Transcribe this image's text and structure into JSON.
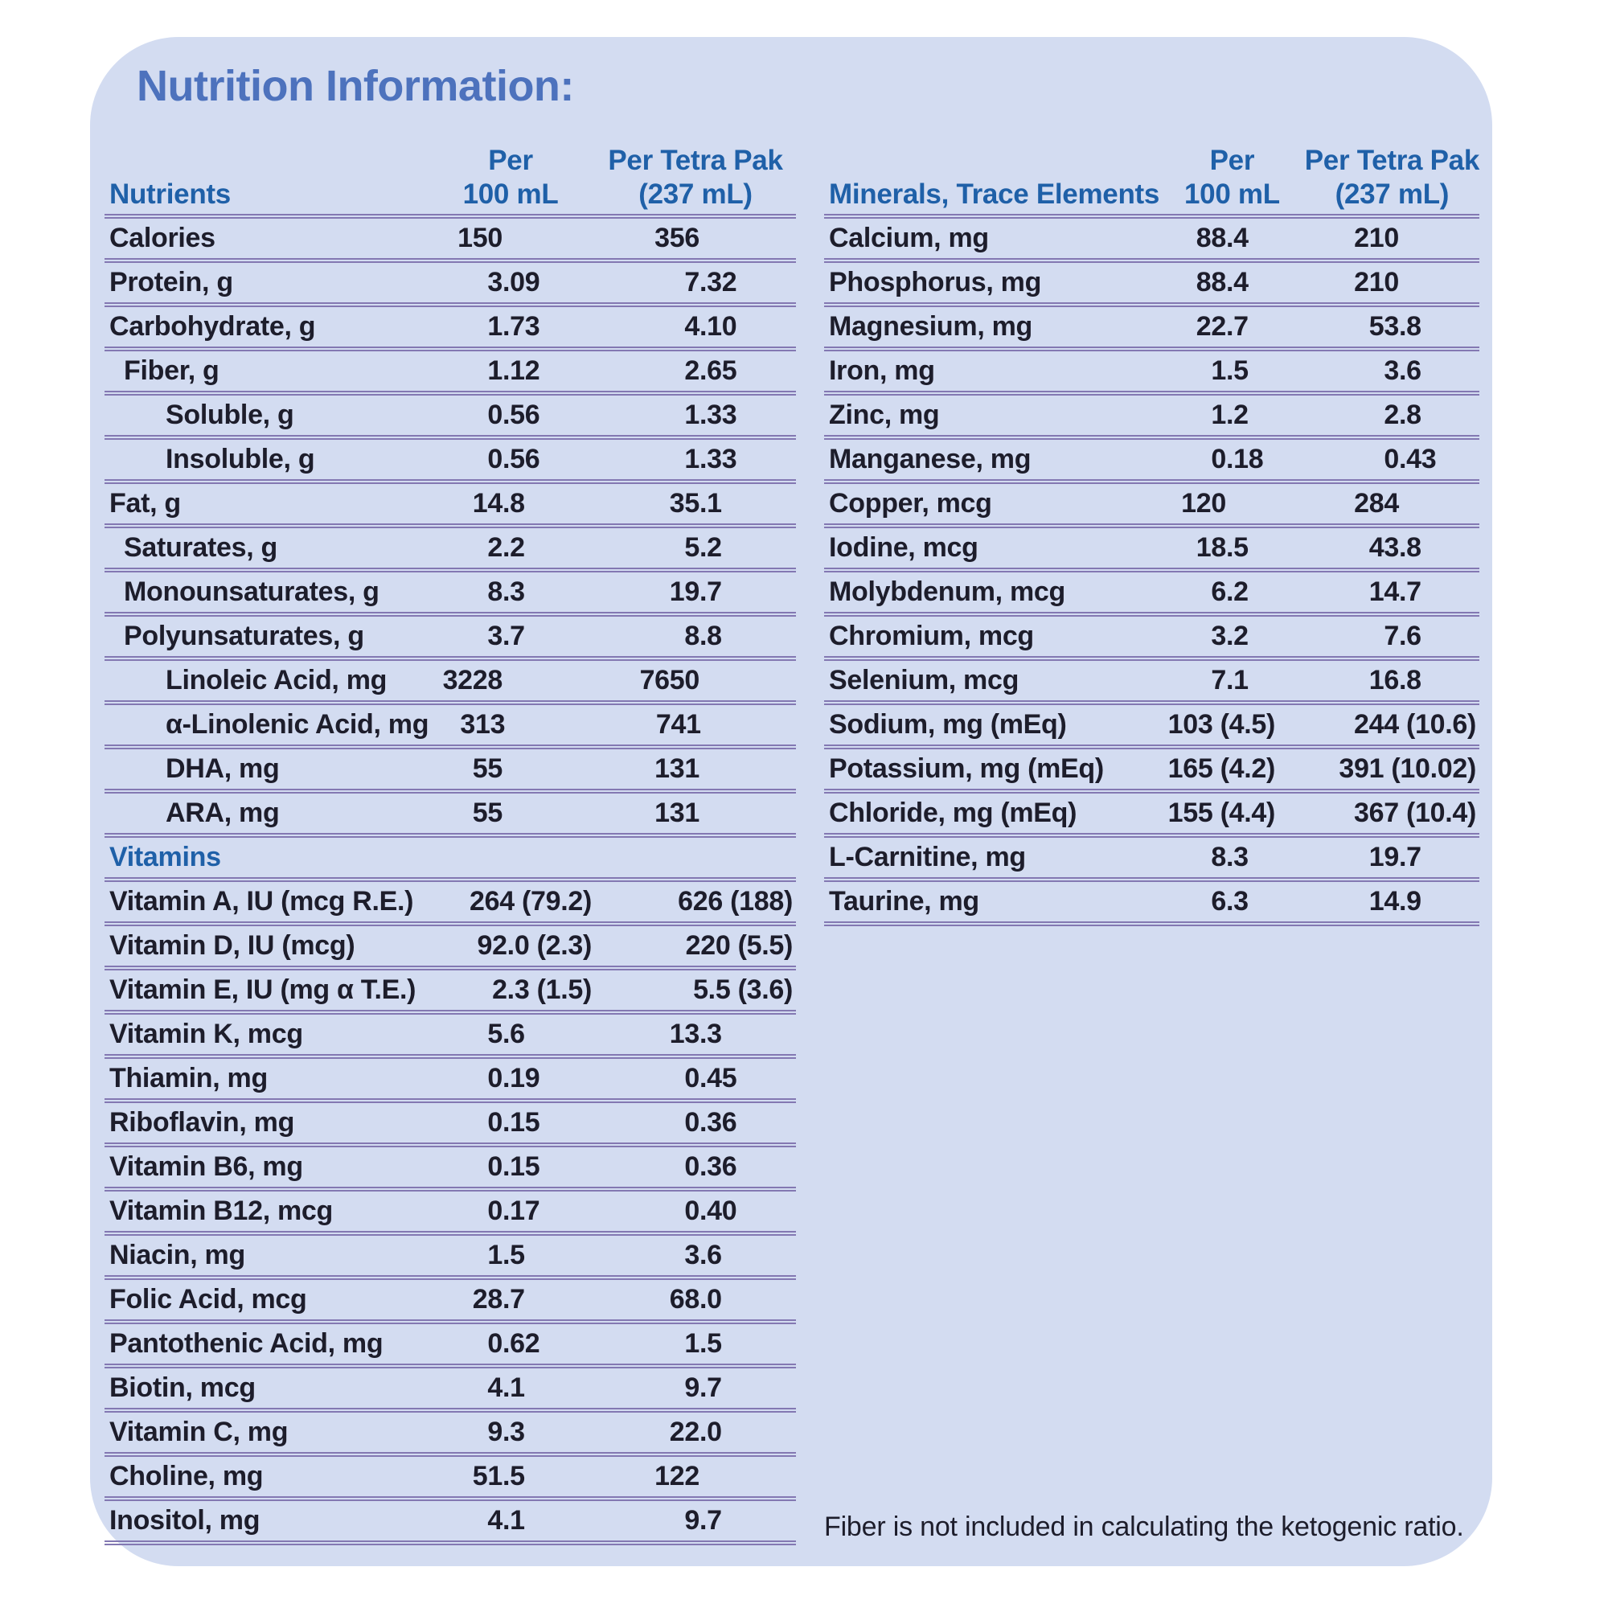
{
  "title": "Nutrition Information:",
  "footnote": "Fiber is not included in calculating the ketogenic ratio.",
  "colors": {
    "panel_background": "#d3dcf1",
    "separator_purple": "#8378b2",
    "header_blue": "#1f60a8",
    "title_blue": "#4d72bd",
    "body_text": "#1d1d2b"
  },
  "left_table": {
    "header": {
      "label": "Nutrients",
      "col1": [
        "Per",
        "100 mL"
      ],
      "col2": [
        "Per Tetra Pak",
        "(237 mL)"
      ]
    },
    "rows": [
      {
        "label": "Calories",
        "indent": 0,
        "v100": "150",
        "vpak": "356"
      },
      {
        "label": "Protein, g",
        "indent": 0,
        "v100": "3.09",
        "vpak": "7.32"
      },
      {
        "label": "Carbohydrate, g",
        "indent": 0,
        "v100": "1.73",
        "vpak": "4.10"
      },
      {
        "label": "Fiber, g",
        "indent": 1,
        "v100": "1.12",
        "vpak": "2.65"
      },
      {
        "label": "Soluble, g",
        "indent": 2,
        "v100": "0.56",
        "vpak": "1.33"
      },
      {
        "label": "Insoluble, g",
        "indent": 2,
        "v100": "0.56",
        "vpak": "1.33"
      },
      {
        "label": "Fat, g",
        "indent": 0,
        "v100": "14.8",
        "vpak": "35.1"
      },
      {
        "label": "Saturates, g",
        "indent": 1,
        "v100": "2.2",
        "vpak": "5.2"
      },
      {
        "label": "Monounsaturates, g",
        "indent": 1,
        "v100": "8.3",
        "vpak": "19.7"
      },
      {
        "label": "Polyunsaturates, g",
        "indent": 1,
        "v100": "3.7",
        "vpak": "8.8"
      },
      {
        "label": "Linoleic Acid, mg",
        "indent": 2,
        "v100": "3228",
        "vpak": "7650"
      },
      {
        "label": "α-Linolenic Acid, mg",
        "indent": 2,
        "v100": "313",
        "vpak": "741"
      },
      {
        "label": "DHA, mg",
        "indent": 2,
        "v100": "55",
        "vpak": "131"
      },
      {
        "label": "ARA, mg",
        "indent": 2,
        "v100": "55",
        "vpak": "131"
      },
      {
        "label": "Vitamins",
        "section": true
      },
      {
        "label": "Vitamin A, IU (mcg R.E.)",
        "indent": 0,
        "v100": "264 (79.2)",
        "vpak": "626 (188)"
      },
      {
        "label": "Vitamin D, IU (mcg)",
        "indent": 0,
        "v100": "92.0 (2.3)",
        "vpak": "220 (5.5)"
      },
      {
        "label": "Vitamin E, IU (mg α T.E.)",
        "indent": 0,
        "v100": "2.3 (1.5)",
        "vpak": "5.5 (3.6)"
      },
      {
        "label": "Vitamin K, mcg",
        "indent": 0,
        "v100": "5.6",
        "vpak": "13.3"
      },
      {
        "label": "Thiamin, mg",
        "indent": 0,
        "v100": "0.19",
        "vpak": "0.45"
      },
      {
        "label": "Riboflavin, mg",
        "indent": 0,
        "v100": "0.15",
        "vpak": "0.36"
      },
      {
        "label": "Vitamin B6, mg",
        "indent": 0,
        "v100": "0.15",
        "vpak": "0.36"
      },
      {
        "label": "Vitamin B12, mcg",
        "indent": 0,
        "v100": "0.17",
        "vpak": "0.40"
      },
      {
        "label": "Niacin, mg",
        "indent": 0,
        "v100": "1.5",
        "vpak": "3.6"
      },
      {
        "label": "Folic Acid, mcg",
        "indent": 0,
        "v100": "28.7",
        "vpak": "68.0"
      },
      {
        "label": "Pantothenic Acid, mg",
        "indent": 0,
        "v100": "0.62",
        "vpak": "1.5"
      },
      {
        "label": "Biotin, mcg",
        "indent": 0,
        "v100": "4.1",
        "vpak": "9.7"
      },
      {
        "label": "Vitamin C, mg",
        "indent": 0,
        "v100": "9.3",
        "vpak": "22.0"
      },
      {
        "label": "Choline, mg",
        "indent": 0,
        "v100": "51.5",
        "vpak": "122"
      },
      {
        "label": "Inositol, mg",
        "indent": 0,
        "v100": "4.1",
        "vpak": "9.7"
      }
    ]
  },
  "right_table": {
    "header": {
      "label": "Minerals, Trace Elements",
      "col1": [
        "Per",
        "100 mL"
      ],
      "col2": [
        "Per Tetra Pak",
        "(237 mL)"
      ]
    },
    "rows": [
      {
        "label": "Calcium, mg",
        "indent": 0,
        "v100": "88.4",
        "vpak": "210"
      },
      {
        "label": "Phosphorus, mg",
        "indent": 0,
        "v100": "88.4",
        "vpak": "210"
      },
      {
        "label": "Magnesium, mg",
        "indent": 0,
        "v100": "22.7",
        "vpak": "53.8"
      },
      {
        "label": "Iron, mg",
        "indent": 0,
        "v100": "1.5",
        "vpak": "3.6"
      },
      {
        "label": "Zinc, mg",
        "indent": 0,
        "v100": "1.2",
        "vpak": "2.8"
      },
      {
        "label": "Manganese, mg",
        "indent": 0,
        "v100": "0.18",
        "vpak": "0.43"
      },
      {
        "label": "Copper, mcg",
        "indent": 0,
        "v100": "120",
        "vpak": "284"
      },
      {
        "label": "Iodine, mcg",
        "indent": 0,
        "v100": "18.5",
        "vpak": "43.8"
      },
      {
        "label": "Molybdenum, mcg",
        "indent": 0,
        "v100": "6.2",
        "vpak": "14.7"
      },
      {
        "label": "Chromium, mcg",
        "indent": 0,
        "v100": "3.2",
        "vpak": "7.6"
      },
      {
        "label": "Selenium, mcg",
        "indent": 0,
        "v100": "7.1",
        "vpak": "16.8"
      },
      {
        "label": "Sodium, mg (mEq)",
        "indent": 0,
        "v100": "103 (4.5)",
        "vpak": "244 (10.6)"
      },
      {
        "label": "Potassium, mg (mEq)",
        "indent": 0,
        "v100": "165 (4.2)",
        "vpak": "391 (10.02)"
      },
      {
        "label": "Chloride, mg (mEq)",
        "indent": 0,
        "v100": "155 (4.4)",
        "vpak": "367 (10.4)"
      },
      {
        "label": "L-Carnitine, mg",
        "indent": 0,
        "v100": "8.3",
        "vpak": "19.7"
      },
      {
        "label": "Taurine, mg",
        "indent": 0,
        "v100": "6.3",
        "vpak": "14.9"
      }
    ]
  }
}
